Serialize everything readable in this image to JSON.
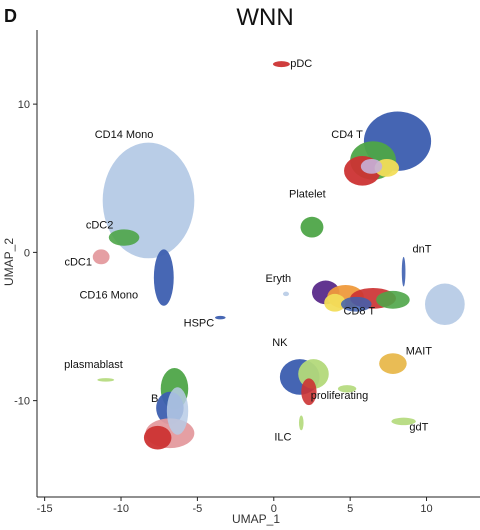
{
  "panel_letter": "D",
  "chart_data": {
    "type": "scatter",
    "title": "WNN",
    "xlabel": "UMAP_1",
    "ylabel": "UMAP_2",
    "xlim": [
      -15.5,
      13.5
    ],
    "ylim": [
      -16.5,
      15
    ],
    "xticks": [
      -15,
      -10,
      -5,
      0,
      5,
      10
    ],
    "yticks": [
      -10,
      0,
      10
    ],
    "grid": false,
    "legend": "none",
    "clusters": [
      {
        "name": "CD14 Mono",
        "x": -8.2,
        "y": 3.5,
        "label_x": -9.8,
        "label_y": 7.7
      },
      {
        "name": "CD16 Mono",
        "x": -7.3,
        "y": -1.5,
        "label_x": -10.8,
        "label_y": -3.1
      },
      {
        "name": "cDC2",
        "x": -9.8,
        "y": 1.0,
        "label_x": -11.4,
        "label_y": 1.6
      },
      {
        "name": "cDC1",
        "x": -11.3,
        "y": -0.3,
        "label_x": -12.8,
        "label_y": -0.9
      },
      {
        "name": "pDC",
        "x": 0.5,
        "y": 12.7,
        "label_x": 1.8,
        "label_y": 12.5
      },
      {
        "name": "Platelet",
        "x": 2.5,
        "y": 1.7,
        "label_x": 2.2,
        "label_y": 3.7
      },
      {
        "name": "Eryth",
        "x": 0.8,
        "y": -2.8,
        "label_x": 0.3,
        "label_y": -2.0
      },
      {
        "name": "HSPC",
        "x": -3.5,
        "y": -4.4,
        "label_x": -4.9,
        "label_y": -5.0
      },
      {
        "name": "CD4 T",
        "x": 6.8,
        "y": 6.5,
        "label_x": 4.8,
        "label_y": 7.7
      },
      {
        "name": "CD8 T",
        "x": 6.2,
        "y": -3.0,
        "label_x": 5.6,
        "label_y": -4.2
      },
      {
        "name": "dnT",
        "x": 8.5,
        "y": -1.3,
        "label_x": 9.7,
        "label_y": 0.0
      },
      {
        "name": "NK",
        "x": 2.0,
        "y": -8.4,
        "label_x": 0.4,
        "label_y": -6.3
      },
      {
        "name": "MAIT",
        "x": 7.8,
        "y": -7.5,
        "label_x": 9.5,
        "label_y": -6.9
      },
      {
        "name": "proliferating",
        "x": 4.8,
        "y": -9.2,
        "label_x": 4.3,
        "label_y": -9.9
      },
      {
        "name": "ILC",
        "x": 1.8,
        "y": -11.5,
        "label_x": 0.6,
        "label_y": -12.7
      },
      {
        "name": "plasmablast",
        "x": -11.0,
        "y": -8.6,
        "label_x": -11.8,
        "label_y": -7.8
      },
      {
        "name": "B",
        "x": -6.8,
        "y": -11.0,
        "label_x": -7.8,
        "label_y": -10.1
      },
      {
        "name": "gdT",
        "x": 8.5,
        "y": -11.4,
        "label_x": 9.5,
        "label_y": -12.0
      }
    ]
  },
  "colors": {
    "light_blue": "#b7cbe6",
    "dark_blue": "#3d5fb0",
    "green": "#4ea548",
    "light_green": "#b3d97a",
    "red": "#cc3333",
    "pink": "#e49a9e",
    "orange": "#ef9a3c",
    "yellow": "#f2dd5a",
    "gold": "#e8b84c",
    "purple": "#5a2a8a",
    "lavender": "#c7b1d9",
    "axis": "#222222"
  }
}
